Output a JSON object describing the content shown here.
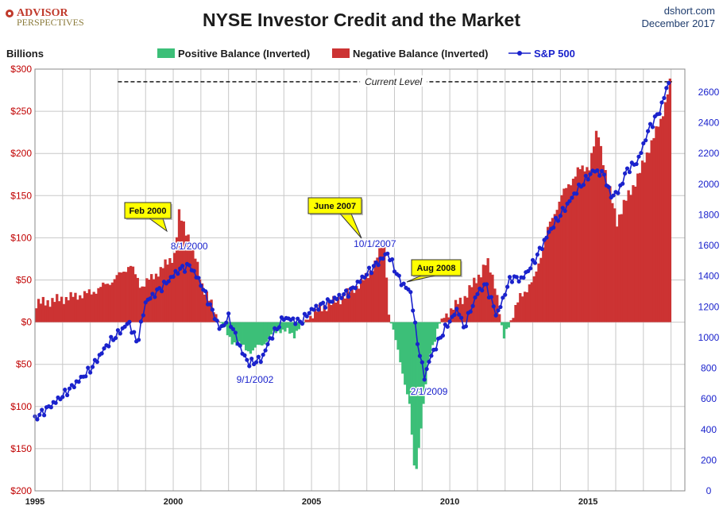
{
  "header": {
    "logo_line1": "ADVISOR",
    "logo_line2": "PERSPECTIVES",
    "source": "dshort.com",
    "date": "December 2017"
  },
  "colors": {
    "positive": "#3cbf78",
    "negative": "#cc3333",
    "sp500": "#1a22cc",
    "left_axis": "#c00000",
    "right_axis": "#1a22cc",
    "grid": "#c8c8c8",
    "callout_fill": "#ffff00"
  },
  "chart_data": {
    "type": "bar",
    "title": "NYSE Investor Credit and the Market",
    "ylabel": "Billions",
    "legend_position": "top",
    "grid": true,
    "x_ticks": [
      1995,
      2000,
      2005,
      2010,
      2015
    ],
    "x_range": [
      1995.0,
      2018.5
    ],
    "y_left_range": [
      -200,
      300
    ],
    "y_left_ticks": [
      {
        "value": 300,
        "label": "$300"
      },
      {
        "value": 250,
        "label": "$250"
      },
      {
        "value": 200,
        "label": "$200"
      },
      {
        "value": 150,
        "label": "$150"
      },
      {
        "value": 100,
        "label": "$100"
      },
      {
        "value": 50,
        "label": "$50"
      },
      {
        "value": 0,
        "label": "$0"
      },
      {
        "value": -50,
        "label": "$50"
      },
      {
        "value": -100,
        "label": "$100"
      },
      {
        "value": -150,
        "label": "$150"
      },
      {
        "value": -200,
        "label": "$200"
      }
    ],
    "y_right_range": [
      0,
      2750
    ],
    "y_right_ticks": [
      0,
      200,
      400,
      600,
      800,
      1000,
      1200,
      1400,
      1600,
      1800,
      2000,
      2200,
      2400,
      2600
    ],
    "series": [
      {
        "name": "Positive Balance (Inverted)",
        "kind": "bar-negative-region"
      },
      {
        "name": "Negative Balance (Inverted)",
        "kind": "bar-positive-region"
      },
      {
        "name": "S&P 500",
        "kind": "line-right-axis"
      }
    ],
    "credit_keypoints": [
      [
        1995.0,
        22
      ],
      [
        1996.0,
        28
      ],
      [
        1997.0,
        35
      ],
      [
        1997.8,
        50
      ],
      [
        1998.4,
        68
      ],
      [
        1998.8,
        42
      ],
      [
        1999.5,
        62
      ],
      [
        2000.0,
        80
      ],
      [
        2000.17,
        128
      ],
      [
        2000.6,
        95
      ],
      [
        2001.0,
        45
      ],
      [
        2001.5,
        8
      ],
      [
        2002.0,
        -20
      ],
      [
        2002.5,
        -30
      ],
      [
        2002.8,
        -35
      ],
      [
        2003.2,
        -25
      ],
      [
        2003.8,
        -8
      ],
      [
        2004.3,
        -15
      ],
      [
        2004.7,
        0
      ],
      [
        2005.0,
        10
      ],
      [
        2005.5,
        20
      ],
      [
        2006.0,
        28
      ],
      [
        2006.5,
        40
      ],
      [
        2007.0,
        55
      ],
      [
        2007.6,
        95
      ],
      [
        2007.75,
        10
      ],
      [
        2007.9,
        -10
      ],
      [
        2008.2,
        -50
      ],
      [
        2008.5,
        -100
      ],
      [
        2008.7,
        -185
      ],
      [
        2009.0,
        -100
      ],
      [
        2009.2,
        -40
      ],
      [
        2009.6,
        0
      ],
      [
        2010.0,
        15
      ],
      [
        2010.5,
        30
      ],
      [
        2011.0,
        55
      ],
      [
        2011.3,
        72
      ],
      [
        2011.6,
        45
      ],
      [
        2011.9,
        -20
      ],
      [
        2012.5,
        30
      ],
      [
        2013.0,
        50
      ],
      [
        2013.5,
        110
      ],
      [
        2014.0,
        150
      ],
      [
        2014.6,
        180
      ],
      [
        2015.0,
        185
      ],
      [
        2015.3,
        228
      ],
      [
        2015.6,
        175
      ],
      [
        2016.0,
        120
      ],
      [
        2016.4,
        150
      ],
      [
        2016.8,
        175
      ],
      [
        2017.2,
        210
      ],
      [
        2017.6,
        240
      ],
      [
        2017.92,
        285
      ]
    ],
    "sp500_keypoints": [
      [
        1995.0,
        470
      ],
      [
        1996.0,
        620
      ],
      [
        1997.0,
        790
      ],
      [
        1997.6,
        950
      ],
      [
        1998.4,
        1100
      ],
      [
        1998.7,
        960
      ],
      [
        1999.0,
        1230
      ],
      [
        1999.6,
        1330
      ],
      [
        2000.2,
        1440
      ],
      [
        2000.6,
        1470
      ],
      [
        2001.0,
        1350
      ],
      [
        2001.7,
        1050
      ],
      [
        2002.0,
        1130
      ],
      [
        2002.5,
        900
      ],
      [
        2002.75,
        830
      ],
      [
        2003.2,
        860
      ],
      [
        2003.5,
        990
      ],
      [
        2004.0,
        1130
      ],
      [
        2004.6,
        1100
      ],
      [
        2005.0,
        1180
      ],
      [
        2005.6,
        1230
      ],
      [
        2006.4,
        1300
      ],
      [
        2006.8,
        1380
      ],
      [
        2007.75,
        1550
      ],
      [
        2008.2,
        1370
      ],
      [
        2008.6,
        1290
      ],
      [
        2008.8,
        1000
      ],
      [
        2009.08,
        740
      ],
      [
        2009.3,
        870
      ],
      [
        2009.8,
        1050
      ],
      [
        2010.3,
        1190
      ],
      [
        2010.5,
        1060
      ],
      [
        2011.0,
        1290
      ],
      [
        2011.3,
        1350
      ],
      [
        2011.7,
        1140
      ],
      [
        2012.2,
        1390
      ],
      [
        2012.6,
        1380
      ],
      [
        2013.0,
        1480
      ],
      [
        2013.6,
        1690
      ],
      [
        2014.0,
        1800
      ],
      [
        2014.6,
        1960
      ],
      [
        2015.2,
        2090
      ],
      [
        2015.6,
        2060
      ],
      [
        2015.8,
        1920
      ],
      [
        2016.1,
        1950
      ],
      [
        2016.4,
        2090
      ],
      [
        2016.8,
        2150
      ],
      [
        2017.2,
        2360
      ],
      [
        2017.6,
        2480
      ],
      [
        2017.92,
        2670
      ]
    ],
    "current_level": {
      "label": "Current Level",
      "value": 285,
      "x_start": 1998.0
    },
    "annotations": [
      {
        "text": "8/1/2000",
        "x": 2000.58,
        "kind": "label"
      },
      {
        "text": "9/1/2002",
        "x": 2002.67,
        "kind": "label"
      },
      {
        "text": "10/1/2007",
        "x": 2007.75,
        "kind": "label"
      },
      {
        "text": "2/1/2009",
        "x": 2009.08,
        "kind": "label"
      },
      {
        "text": "Feb 2000",
        "x": 2000.17,
        "kind": "callout"
      },
      {
        "text": "June 2007",
        "x": 2007.42,
        "kind": "callout"
      },
      {
        "text": "Aug 2008",
        "x": 2008.58,
        "kind": "callout"
      }
    ]
  }
}
